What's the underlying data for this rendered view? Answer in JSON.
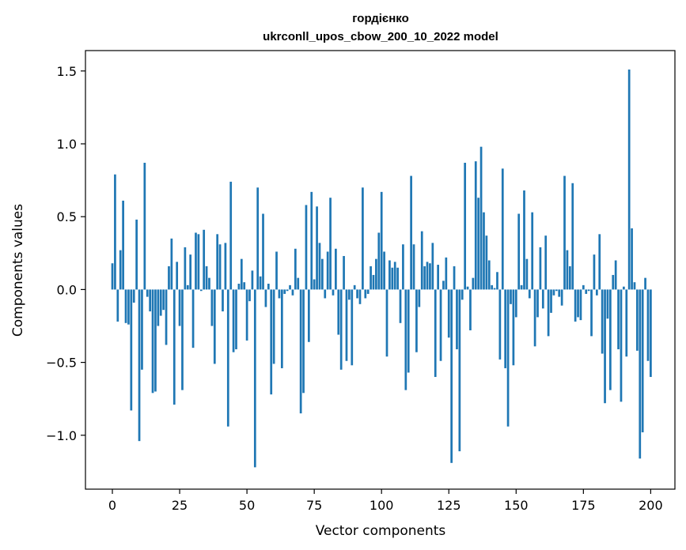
{
  "chart_data": {
    "type": "bar",
    "title_line1": "гордієнко",
    "title_line2": "ukrconll_upos_cbow_200_10_2022 model",
    "xlabel": "Vector components",
    "ylabel": "Components values",
    "xlim": [
      -10,
      209
    ],
    "ylim": [
      -1.37,
      1.64
    ],
    "xticks": [
      0,
      25,
      50,
      75,
      100,
      125,
      150,
      175,
      200
    ],
    "yticks": [
      -1.0,
      -0.5,
      0.0,
      0.5,
      1.0,
      1.5
    ],
    "ytick_labels": [
      "−1.0",
      "−0.5",
      "0.0",
      "0.5",
      "1.0",
      "1.5"
    ],
    "bar_color": "#1f77b4",
    "values": [
      0.18,
      0.79,
      -0.22,
      0.27,
      0.61,
      -0.23,
      -0.24,
      -0.83,
      -0.09,
      0.48,
      -1.04,
      -0.55,
      0.87,
      -0.05,
      -0.15,
      -0.71,
      -0.7,
      -0.25,
      -0.18,
      -0.14,
      -0.38,
      0.16,
      0.35,
      -0.79,
      0.19,
      -0.25,
      -0.69,
      0.29,
      0.03,
      0.24,
      -0.4,
      0.39,
      0.38,
      -0.01,
      0.41,
      0.16,
      0.08,
      -0.25,
      -0.51,
      0.38,
      0.31,
      -0.15,
      0.32,
      -0.94,
      0.74,
      -0.43,
      -0.41,
      0.04,
      0.21,
      0.05,
      -0.35,
      -0.08,
      0.13,
      -1.22,
      0.7,
      0.09,
      0.52,
      -0.12,
      0.04,
      -0.72,
      -0.51,
      0.26,
      -0.06,
      -0.54,
      -0.03,
      -0.01,
      0.03,
      -0.04,
      0.28,
      0.08,
      -0.85,
      -0.71,
      0.58,
      -0.36,
      0.67,
      0.07,
      0.57,
      0.32,
      0.21,
      -0.06,
      0.26,
      0.63,
      -0.04,
      0.28,
      -0.31,
      -0.55,
      0.23,
      -0.49,
      -0.07,
      -0.52,
      0.03,
      -0.06,
      -0.1,
      0.7,
      -0.06,
      -0.03,
      0.16,
      0.1,
      0.21,
      0.39,
      0.67,
      0.26,
      -0.46,
      0.2,
      0.15,
      0.19,
      0.15,
      -0.23,
      0.31,
      -0.69,
      -0.57,
      0.78,
      0.31,
      -0.43,
      -0.12,
      0.4,
      0.16,
      0.19,
      0.18,
      0.32,
      -0.6,
      0.17,
      -0.49,
      0.06,
      0.22,
      -0.33,
      -1.19,
      0.16,
      -0.41,
      -1.11,
      -0.07,
      0.87,
      0.02,
      -0.28,
      0.08,
      0.88,
      0.63,
      0.98,
      0.53,
      0.37,
      0.2,
      0.03,
      0.01,
      0.12,
      -0.48,
      0.83,
      -0.54,
      -0.94,
      -0.1,
      -0.52,
      -0.19,
      0.52,
      0.03,
      0.68,
      0.21,
      -0.06,
      0.53,
      -0.39,
      -0.19,
      0.29,
      -0.13,
      0.37,
      -0.32,
      -0.16,
      -0.04,
      -0.01,
      -0.05,
      -0.11,
      0.78,
      0.27,
      0.16,
      0.73,
      -0.22,
      -0.19,
      -0.21,
      0.03,
      -0.03,
      -0.01,
      -0.32,
      0.24,
      -0.04,
      0.38,
      -0.44,
      -0.78,
      -0.2,
      -0.69,
      0.1,
      0.2,
      -0.41,
      -0.77,
      0.02,
      -0.46,
      1.51,
      0.42,
      0.05,
      -0.42,
      -1.16,
      -0.98,
      0.08,
      -0.49,
      -0.6
    ]
  }
}
